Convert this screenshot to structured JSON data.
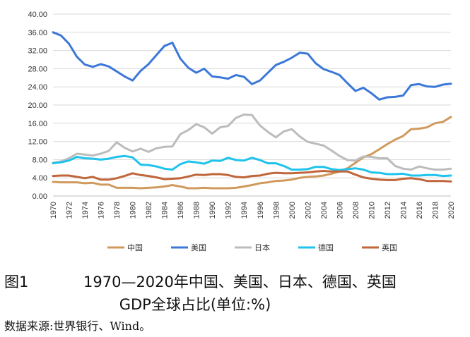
{
  "chart_data": {
    "type": "line",
    "title": "",
    "xlabel": "",
    "ylabel": "",
    "ylim": [
      0,
      40
    ],
    "yticks": [
      "0.00",
      "4.00",
      "8.00",
      "12.00",
      "16.00",
      "20.00",
      "24.00",
      "28.00",
      "32.00",
      "36.00",
      "40.00"
    ],
    "x": [
      1970,
      1971,
      1972,
      1973,
      1974,
      1975,
      1976,
      1977,
      1978,
      1979,
      1980,
      1981,
      1982,
      1983,
      1984,
      1985,
      1986,
      1987,
      1988,
      1989,
      1990,
      1991,
      1992,
      1993,
      1994,
      1995,
      1996,
      1997,
      1998,
      1999,
      2000,
      2001,
      2002,
      2003,
      2004,
      2005,
      2006,
      2007,
      2008,
      2009,
      2010,
      2011,
      2012,
      2013,
      2014,
      2015,
      2016,
      2017,
      2018,
      2019,
      2020
    ],
    "xticks": [
      "1970",
      "1972",
      "1974",
      "1976",
      "1978",
      "1980",
      "1982",
      "1984",
      "1986",
      "1988",
      "1990",
      "1992",
      "1994",
      "1996",
      "1998",
      "2000",
      "2002",
      "2004",
      "2006",
      "2008",
      "2010",
      "2012",
      "2014",
      "2016",
      "2018",
      "2020"
    ],
    "series": [
      {
        "name": "中国",
        "color": "#d09a5e",
        "values": [
          3.1,
          3.0,
          3.0,
          3.0,
          2.8,
          2.9,
          2.5,
          2.5,
          1.8,
          1.8,
          1.8,
          1.7,
          1.8,
          1.9,
          2.1,
          2.4,
          2.1,
          1.7,
          1.7,
          1.8,
          1.7,
          1.7,
          1.7,
          1.8,
          2.1,
          2.4,
          2.8,
          3.0,
          3.3,
          3.4,
          3.6,
          4.0,
          4.2,
          4.3,
          4.5,
          4.9,
          5.4,
          6.1,
          7.3,
          8.5,
          9.2,
          10.3,
          11.4,
          12.4,
          13.2,
          14.7,
          14.8,
          15.1,
          16.0,
          16.3,
          17.4
        ]
      },
      {
        "name": "美国",
        "color": "#3c78d8",
        "values": [
          36.0,
          35.3,
          33.5,
          30.6,
          28.9,
          28.4,
          29.0,
          28.5,
          27.4,
          26.3,
          25.4,
          27.5,
          29.0,
          31.0,
          33.0,
          33.7,
          30.2,
          28.2,
          27.1,
          28.0,
          26.3,
          26.1,
          25.8,
          26.6,
          26.2,
          24.6,
          25.4,
          27.1,
          28.8,
          29.5,
          30.4,
          31.5,
          31.3,
          29.2,
          27.9,
          27.3,
          26.6,
          24.8,
          23.1,
          23.8,
          22.6,
          21.2,
          21.7,
          21.8,
          22.1,
          24.4,
          24.6,
          24.1,
          24.0,
          24.5,
          24.7
        ]
      },
      {
        "name": "日本",
        "color": "#bcbcbc",
        "values": [
          7.3,
          7.6,
          8.3,
          9.3,
          9.1,
          8.9,
          9.3,
          9.9,
          11.8,
          10.6,
          9.8,
          10.4,
          9.7,
          10.5,
          10.8,
          10.9,
          13.6,
          14.5,
          15.8,
          15.1,
          13.7,
          15.1,
          15.4,
          17.2,
          17.9,
          17.8,
          15.5,
          14.1,
          12.9,
          14.2,
          14.7,
          13.1,
          11.9,
          11.5,
          11.1,
          10.0,
          8.8,
          7.9,
          7.8,
          8.7,
          8.6,
          8.3,
          8.3,
          6.6,
          6.0,
          5.8,
          6.5,
          6.1,
          5.8,
          5.8,
          6.0
        ]
      },
      {
        "name": "德国",
        "color": "#1fc3ec",
        "values": [
          7.2,
          7.4,
          7.8,
          8.6,
          8.3,
          8.2,
          8.0,
          8.2,
          8.6,
          8.8,
          8.5,
          6.9,
          6.8,
          6.5,
          6.0,
          5.8,
          7.0,
          7.6,
          7.4,
          7.1,
          7.8,
          7.7,
          8.4,
          7.9,
          7.8,
          8.4,
          7.9,
          7.2,
          7.2,
          6.6,
          5.8,
          5.8,
          5.9,
          6.4,
          6.4,
          5.9,
          5.7,
          5.9,
          6.1,
          5.8,
          5.2,
          5.1,
          4.8,
          4.8,
          4.9,
          4.5,
          4.5,
          4.6,
          4.6,
          4.4,
          4.5
        ]
      },
      {
        "name": "英国",
        "color": "#c0663a",
        "values": [
          4.4,
          4.5,
          4.5,
          4.2,
          3.9,
          4.2,
          3.6,
          3.6,
          3.9,
          4.4,
          5.0,
          4.6,
          4.4,
          4.1,
          3.7,
          3.8,
          3.9,
          4.3,
          4.7,
          4.6,
          4.8,
          4.8,
          4.6,
          4.2,
          4.1,
          4.4,
          4.5,
          4.9,
          5.1,
          5.0,
          5.0,
          5.1,
          5.2,
          5.4,
          5.5,
          5.4,
          5.4,
          5.4,
          4.7,
          4.1,
          3.8,
          3.6,
          3.5,
          3.5,
          3.8,
          3.9,
          3.7,
          3.3,
          3.3,
          3.3,
          3.2
        ]
      }
    ]
  },
  "caption": {
    "figure_label": "图1",
    "title_line1": "1970—2020年中国、美国、日本、德国、英国",
    "title_line2": "GDP全球占比(单位:%)"
  },
  "source": "数据来源:世界银行、Wind。"
}
